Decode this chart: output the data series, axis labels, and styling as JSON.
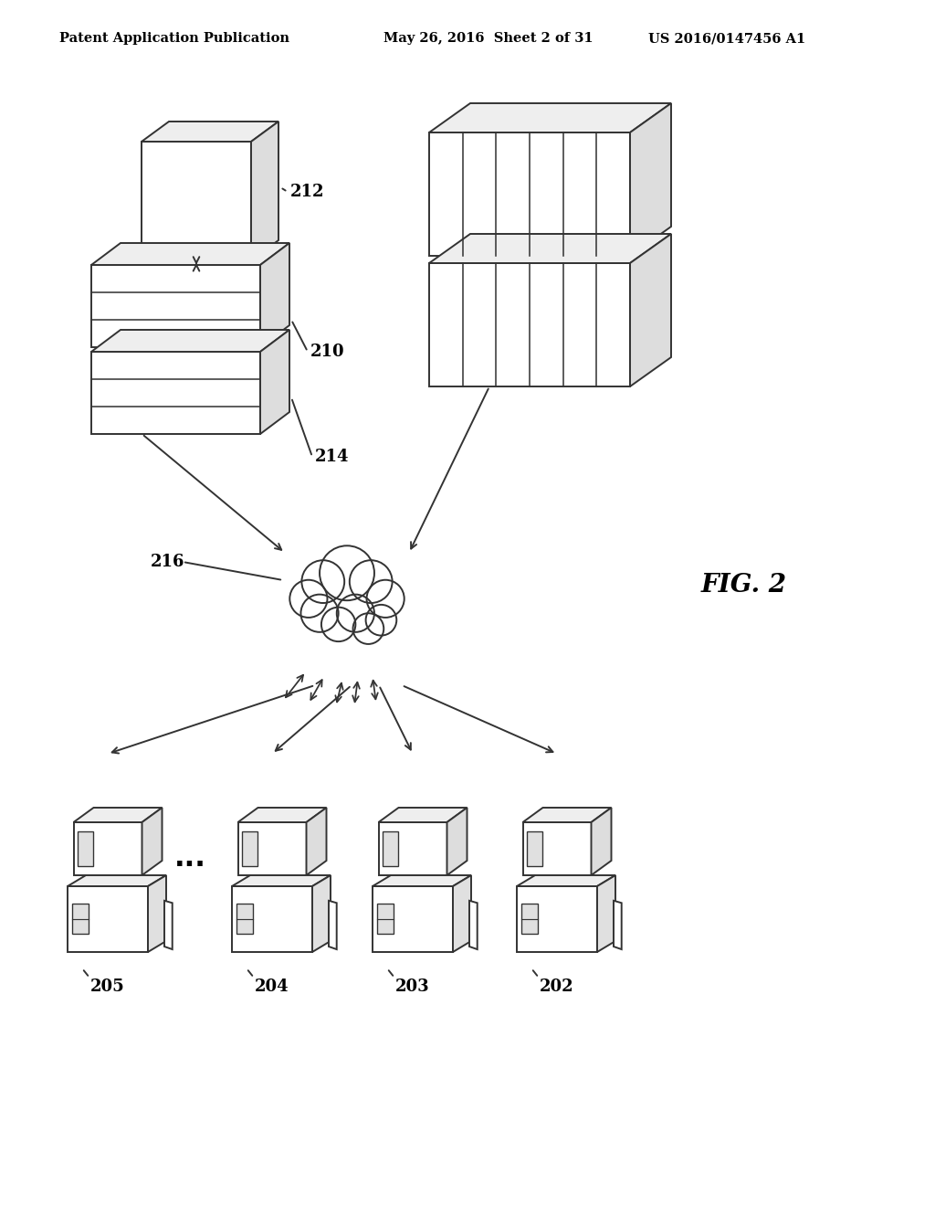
{
  "bg_color": "#ffffff",
  "text_color": "#000000",
  "header_left": "Patent Application Publication",
  "header_mid": "May 26, 2016  Sheet 2 of 31",
  "header_right": "US 2016/0147456 A1",
  "fig_label": "FIG. 2",
  "line_color": "#333333",
  "fill_white": "#ffffff",
  "fill_light": "#eeeeee",
  "fill_mid": "#dddddd",
  "fill_dark": "#cccccc"
}
